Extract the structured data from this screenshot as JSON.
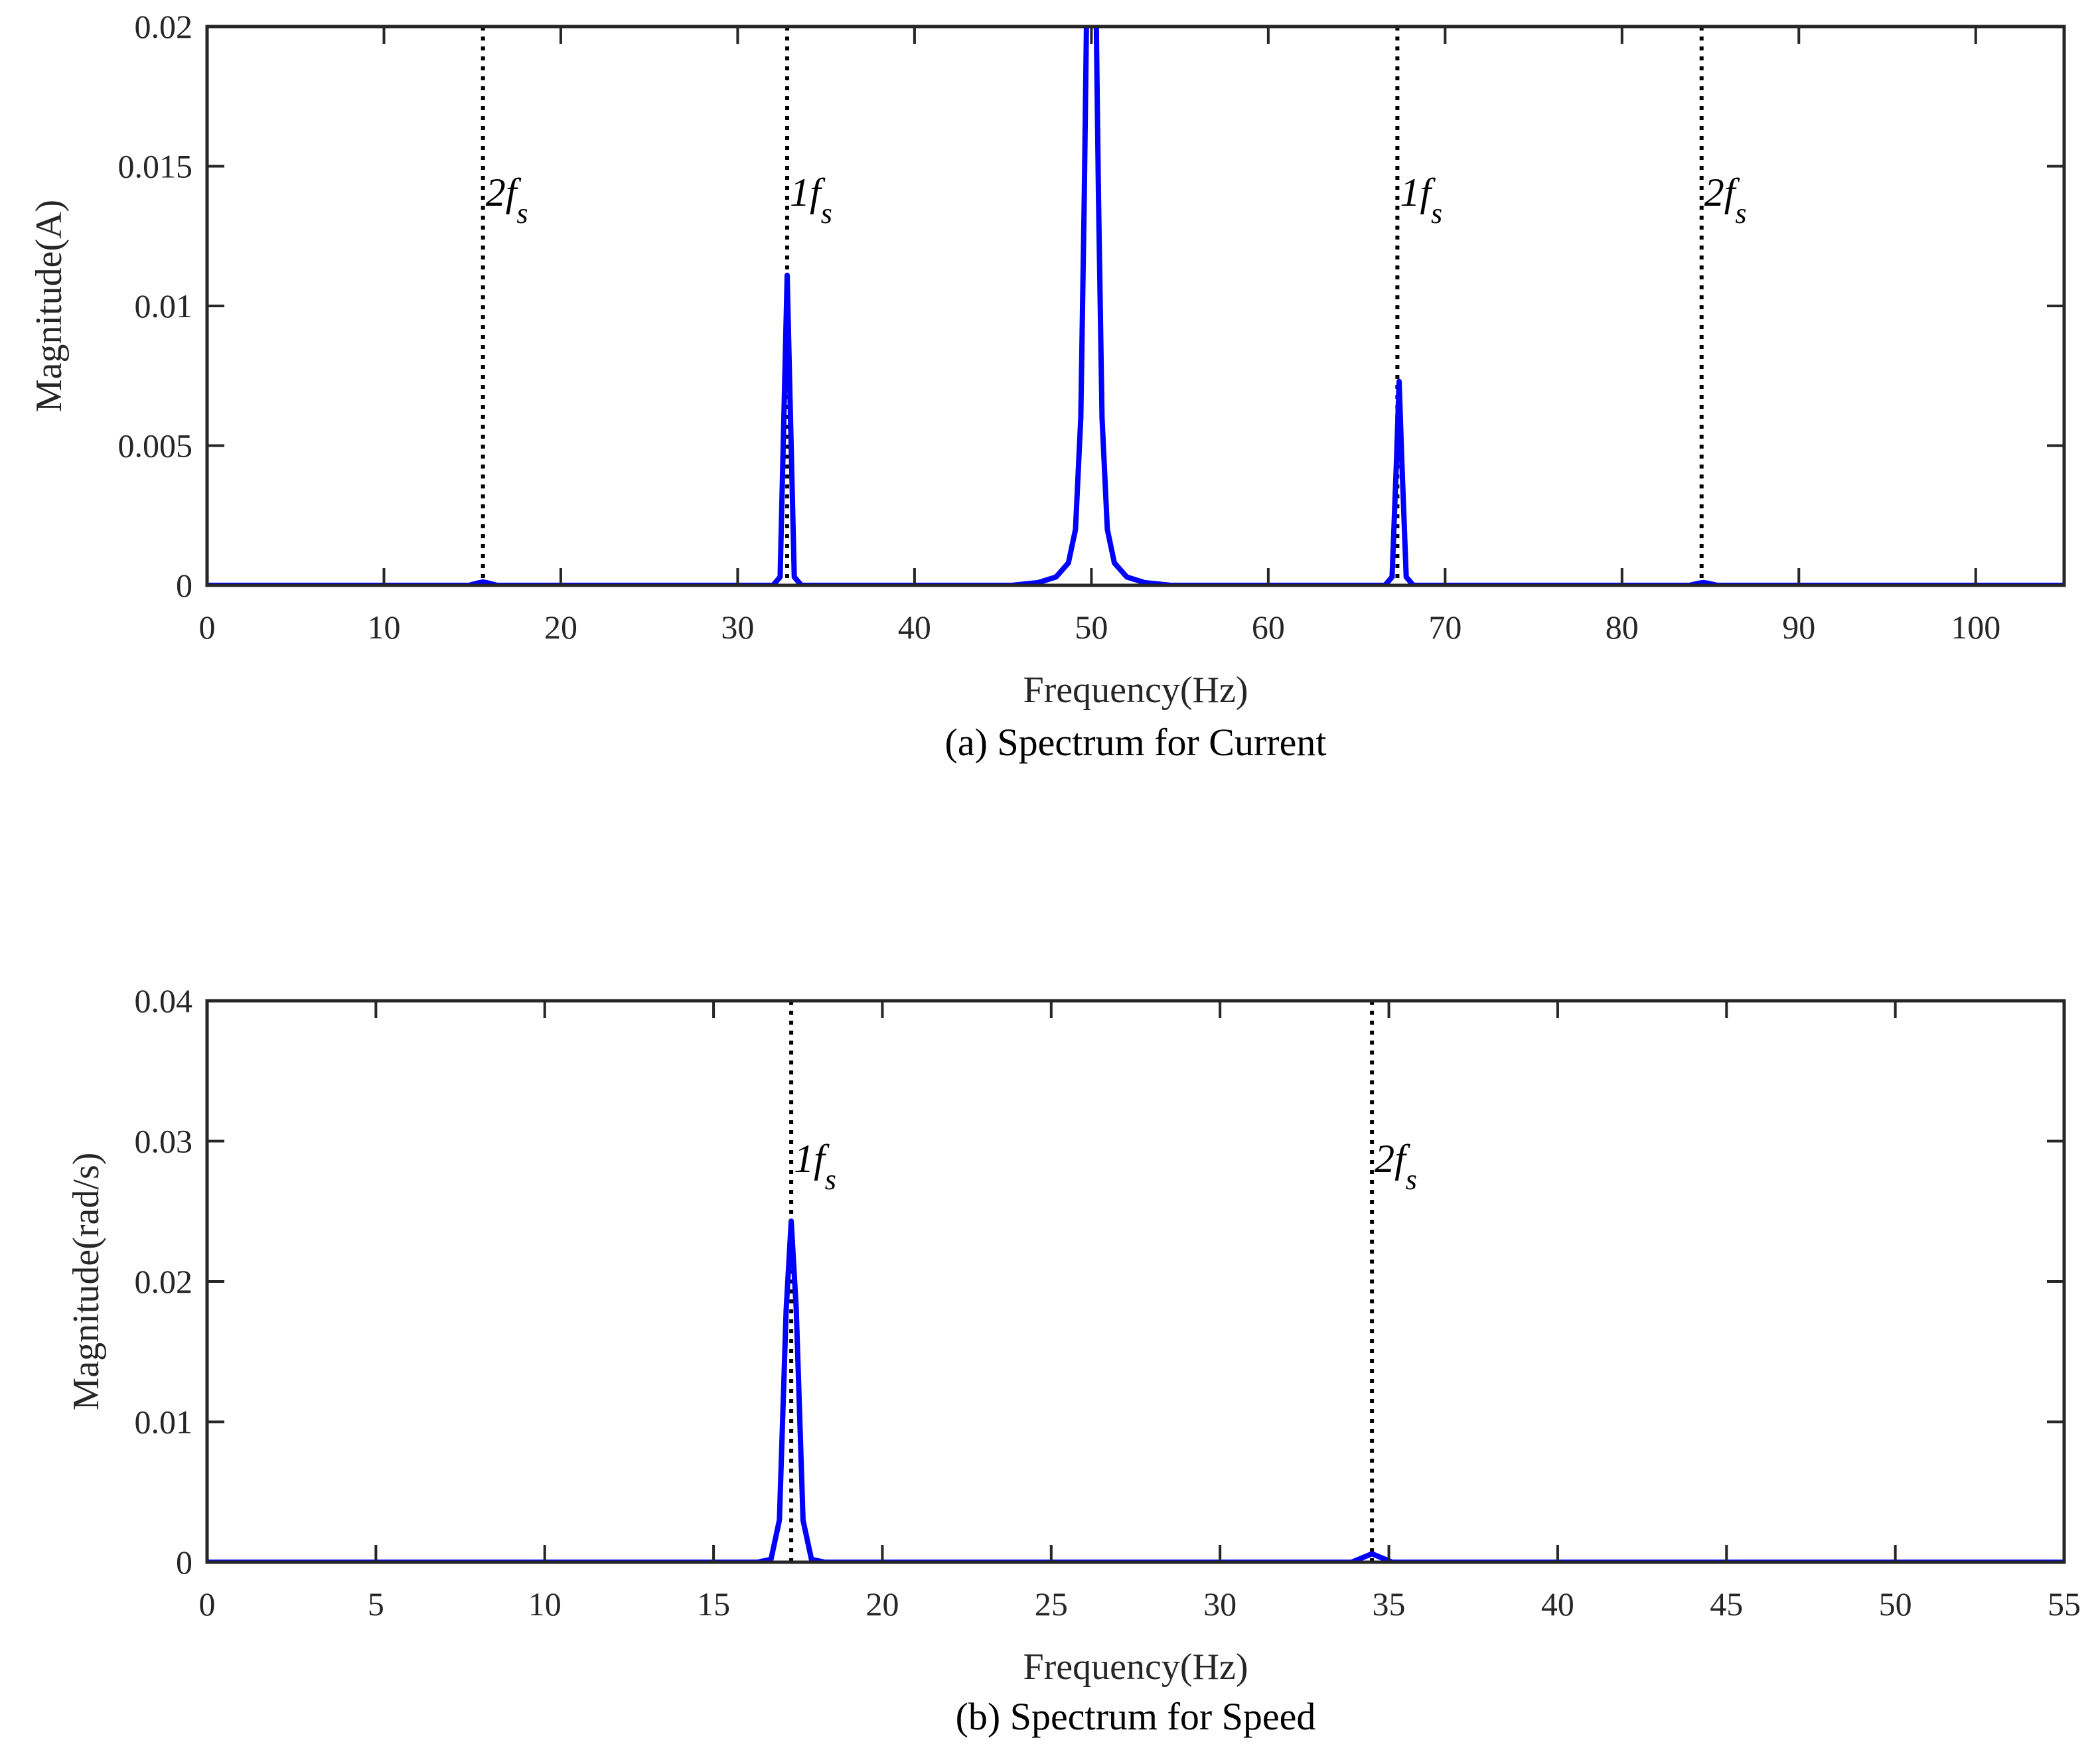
{
  "chart_data": [
    {
      "type": "line",
      "caption": "(a) Spectrum for Current",
      "xlabel": "Frequency(Hz)",
      "ylabel": "Magnitude(A)",
      "xlim": [
        0,
        105
      ],
      "ylim": [
        0,
        0.02
      ],
      "xticks": [
        0,
        10,
        20,
        30,
        40,
        50,
        60,
        70,
        80,
        90,
        100
      ],
      "yticks": [
        0,
        0.005,
        0.01,
        0.015,
        0.02
      ],
      "ytick_labels": [
        "0",
        "0.005",
        "0.01",
        "0.015",
        "0.02"
      ],
      "grid": false,
      "line_color": "#0000ff",
      "marker_color": "#000000",
      "series": [
        {
          "x": [
            0,
            14.8,
            15.3,
            15.6,
            15.9,
            16.4,
            32.0,
            32.4,
            32.65,
            32.8,
            32.95,
            33.2,
            33.6,
            45.5,
            47.0,
            48.0,
            48.7,
            49.1,
            49.4,
            49.6,
            49.75,
            50.25,
            50.4,
            50.6,
            50.9,
            51.3,
            52.0,
            53.0,
            54.5,
            66.6,
            67.0,
            67.25,
            67.4,
            67.55,
            67.8,
            68.2,
            83.8,
            84.3,
            84.6,
            84.9,
            85.4,
            105
          ],
          "y": [
            0,
            0,
            8e-05,
            0.00012,
            8e-05,
            0,
            0,
            0.0003,
            0.007,
            0.0111,
            0.007,
            0.0003,
            0,
            0,
            0.0001,
            0.0003,
            0.0008,
            0.002,
            0.006,
            0.014,
            0.0215,
            0.0215,
            0.014,
            0.006,
            0.002,
            0.0008,
            0.0003,
            0.0001,
            0,
            0,
            0.0003,
            0.0045,
            0.0073,
            0.0045,
            0.0003,
            0,
            0,
            7e-05,
            0.0001,
            7e-05,
            0,
            0
          ]
        }
      ],
      "markers": [
        {
          "x": 15.6,
          "label_main": "2f",
          "label_sub": "s"
        },
        {
          "x": 32.8,
          "label_main": "1f",
          "label_sub": "s"
        },
        {
          "x": 67.3,
          "label_main": "1f",
          "label_sub": "s"
        },
        {
          "x": 84.5,
          "label_main": "2f",
          "label_sub": "s"
        }
      ]
    },
    {
      "type": "line",
      "caption": "(b) Spectrum for Speed",
      "xlabel": "Frequency(Hz)",
      "ylabel": "Magnitude(rad/s)",
      "xlim": [
        0,
        55
      ],
      "ylim": [
        0,
        0.04
      ],
      "xticks": [
        0,
        5,
        10,
        15,
        20,
        25,
        30,
        35,
        40,
        45,
        50,
        55
      ],
      "yticks": [
        0,
        0.01,
        0.02,
        0.03,
        0.04
      ],
      "ytick_labels": [
        "0",
        "0.01",
        "0.02",
        "0.03",
        "0.04"
      ],
      "grid": false,
      "line_color": "#0000ff",
      "marker_color": "#000000",
      "series": [
        {
          "x": [
            0,
            16.3,
            16.7,
            16.95,
            17.15,
            17.3,
            17.45,
            17.65,
            17.9,
            18.3,
            33.9,
            34.2,
            34.5,
            34.8,
            35.1,
            55
          ],
          "y": [
            0,
            0,
            0.0002,
            0.003,
            0.018,
            0.0243,
            0.018,
            0.003,
            0.0002,
            0,
            0,
            0.0003,
            0.0006,
            0.0003,
            0,
            0
          ]
        }
      ],
      "markers": [
        {
          "x": 17.3,
          "label_main": "1f",
          "label_sub": "s"
        },
        {
          "x": 34.5,
          "label_main": "2f",
          "label_sub": "s"
        }
      ]
    }
  ]
}
